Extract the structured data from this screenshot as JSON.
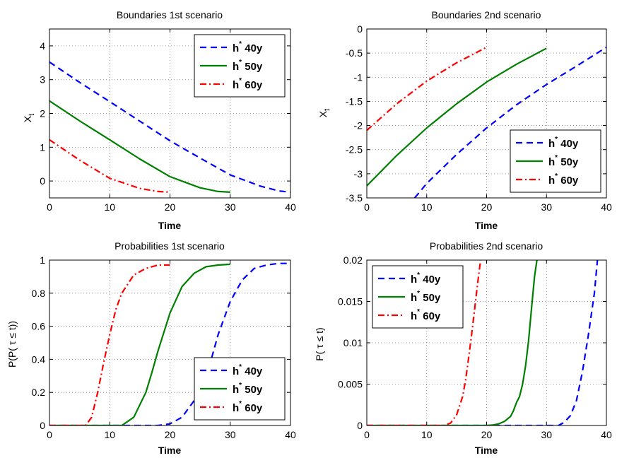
{
  "figure": {
    "background": "#ffffff"
  },
  "chart_data": [
    {
      "type": "line",
      "title": "Boundaries 1st scenario",
      "xlabel": "Time",
      "ylabel": "X",
      "ylabel_sub": "t",
      "xlim": [
        0,
        40
      ],
      "ylim": [
        -0.5,
        4.5
      ],
      "xticks": [
        0,
        10,
        20,
        30,
        40
      ],
      "yticks": [
        0,
        1,
        2,
        3,
        4
      ],
      "ytick_labels": [
        "0",
        "1",
        "2",
        "3",
        "4"
      ],
      "grid": true,
      "legend": "top-right",
      "series": [
        {
          "name": "h",
          "name_sup": "*",
          "name_tail": "40y",
          "color": "#0000ff",
          "style": "dashed",
          "x": [
            0,
            5,
            10,
            15,
            20,
            25,
            30,
            35,
            38,
            40
          ],
          "y": [
            3.52,
            2.92,
            2.35,
            1.77,
            1.19,
            0.68,
            0.18,
            -0.15,
            -0.29,
            -0.33
          ]
        },
        {
          "name": "h",
          "name_sup": "*",
          "name_tail": "50y",
          "color": "#008000",
          "style": "solid",
          "x": [
            0,
            5,
            10,
            15,
            20,
            25,
            28,
            30
          ],
          "y": [
            2.37,
            1.78,
            1.22,
            0.65,
            0.13,
            -0.2,
            -0.31,
            -0.33
          ]
        },
        {
          "name": "h",
          "name_sup": "*",
          "name_tail": "60y",
          "color": "#ff0000",
          "style": "dashdot",
          "x": [
            0,
            5,
            10,
            15,
            18,
            20
          ],
          "y": [
            1.22,
            0.62,
            0.08,
            -0.22,
            -0.31,
            -0.33
          ]
        }
      ]
    },
    {
      "type": "line",
      "title": "Boundaries 2nd scenario",
      "xlabel": "Time",
      "ylabel": "X",
      "ylabel_sub": "t",
      "xlim": [
        0,
        40
      ],
      "ylim": [
        -3.5,
        0
      ],
      "xticks": [
        0,
        10,
        20,
        30,
        40
      ],
      "yticks": [
        -3.5,
        -3,
        -2.5,
        -2,
        -1.5,
        -1,
        -0.5,
        0
      ],
      "ytick_labels": [
        "-3.5",
        "-3",
        "-2.5",
        "-2",
        "-1.5",
        "-1",
        "-0.5",
        "0"
      ],
      "grid": true,
      "legend": "bottom-right",
      "series": [
        {
          "name": "h",
          "name_sup": "*",
          "name_tail": "40y",
          "color": "#0000ff",
          "style": "dashed",
          "x": [
            8,
            10,
            15,
            20,
            25,
            30,
            35,
            40
          ],
          "y": [
            -3.5,
            -3.2,
            -2.6,
            -2.05,
            -1.57,
            -1.15,
            -0.77,
            -0.38
          ]
        },
        {
          "name": "h",
          "name_sup": "*",
          "name_tail": "50y",
          "color": "#008000",
          "style": "solid",
          "x": [
            0,
            5,
            10,
            15,
            20,
            25,
            30
          ],
          "y": [
            -3.25,
            -2.62,
            -2.05,
            -1.55,
            -1.1,
            -0.73,
            -0.4
          ]
        },
        {
          "name": "h",
          "name_sup": "*",
          "name_tail": "60y",
          "color": "#ff0000",
          "style": "dashdot",
          "x": [
            0,
            5,
            10,
            15,
            20
          ],
          "y": [
            -2.1,
            -1.55,
            -1.08,
            -0.7,
            -0.38
          ]
        }
      ]
    },
    {
      "type": "line",
      "title": "Probabilities 1st scenario",
      "xlabel": "Time",
      "ylabel": "P(P( τ ≤ t))",
      "xlim": [
        0,
        40
      ],
      "ylim": [
        0,
        1
      ],
      "xticks": [
        0,
        10,
        20,
        30,
        40
      ],
      "yticks": [
        0,
        0.2,
        0.4,
        0.6,
        0.8,
        1
      ],
      "ytick_labels": [
        "0",
        "0.2",
        "0.4",
        "0.6",
        "0.8",
        "1"
      ],
      "grid": true,
      "legend": "bottom-right",
      "series": [
        {
          "name": "h",
          "name_sup": "*",
          "name_tail": "40y",
          "color": "#0000ff",
          "style": "dashed",
          "x": [
            0,
            18,
            20,
            22,
            24,
            26,
            27,
            28,
            30,
            32,
            34,
            36,
            38,
            40
          ],
          "y": [
            0,
            0,
            0.01,
            0.05,
            0.15,
            0.3,
            0.42,
            0.55,
            0.75,
            0.88,
            0.95,
            0.97,
            0.98,
            0.98
          ]
        },
        {
          "name": "h",
          "name_sup": "*",
          "name_tail": "50y",
          "color": "#008000",
          "style": "solid",
          "x": [
            0,
            12,
            14,
            16,
            17,
            18,
            20,
            22,
            24,
            26,
            28,
            30
          ],
          "y": [
            0,
            0,
            0.05,
            0.2,
            0.32,
            0.45,
            0.68,
            0.84,
            0.92,
            0.96,
            0.97,
            0.975
          ]
        },
        {
          "name": "h",
          "name_sup": "*",
          "name_tail": "60y",
          "color": "#ff0000",
          "style": "dashdot",
          "x": [
            0,
            6,
            7,
            8,
            9,
            10,
            11,
            12,
            14,
            16,
            18,
            20
          ],
          "y": [
            0,
            0,
            0.05,
            0.2,
            0.38,
            0.55,
            0.7,
            0.8,
            0.91,
            0.95,
            0.97,
            0.97
          ]
        }
      ]
    },
    {
      "type": "line",
      "title": "Probabilities 2nd scenario",
      "xlabel": "Time",
      "ylabel": "P( τ ≤ t)",
      "xlim": [
        0,
        40
      ],
      "ylim": [
        0,
        0.02
      ],
      "xticks": [
        0,
        10,
        20,
        30,
        40
      ],
      "yticks": [
        0,
        0.005,
        0.01,
        0.015,
        0.02
      ],
      "ytick_labels": [
        "0",
        "0.005",
        "0.01",
        "0.015",
        "0.02"
      ],
      "grid": true,
      "legend": "top-left",
      "series": [
        {
          "name": "h",
          "name_sup": "*",
          "name_tail": "40y",
          "color": "#0000ff",
          "style": "dashed",
          "x": [
            0,
            32,
            33,
            34,
            35,
            36,
            37,
            38,
            38.5
          ],
          "y": [
            0,
            0,
            0.0004,
            0.0012,
            0.003,
            0.0065,
            0.011,
            0.016,
            0.02
          ]
        },
        {
          "name": "h",
          "name_sup": "*",
          "name_tail": "50y",
          "color": "#008000",
          "style": "solid",
          "x": [
            0,
            20,
            21,
            22,
            23,
            24,
            24.5,
            25,
            25.5,
            26,
            26.5,
            27,
            27.5,
            28,
            28.4
          ],
          "y": [
            0,
            0,
            5e-05,
            0.0002,
            0.0005,
            0.0011,
            0.0018,
            0.0028,
            0.0035,
            0.005,
            0.0072,
            0.0102,
            0.0142,
            0.018,
            0.02
          ]
        },
        {
          "name": "h",
          "name_sup": "*",
          "name_tail": "60y",
          "color": "#ff0000",
          "style": "dashdot",
          "x": [
            0,
            13,
            14,
            15,
            16,
            16.5,
            17,
            17.5,
            18,
            18.5,
            19
          ],
          "y": [
            0,
            0,
            0.0003,
            0.0013,
            0.0035,
            0.0055,
            0.0082,
            0.011,
            0.014,
            0.0172,
            0.02
          ]
        }
      ]
    }
  ]
}
